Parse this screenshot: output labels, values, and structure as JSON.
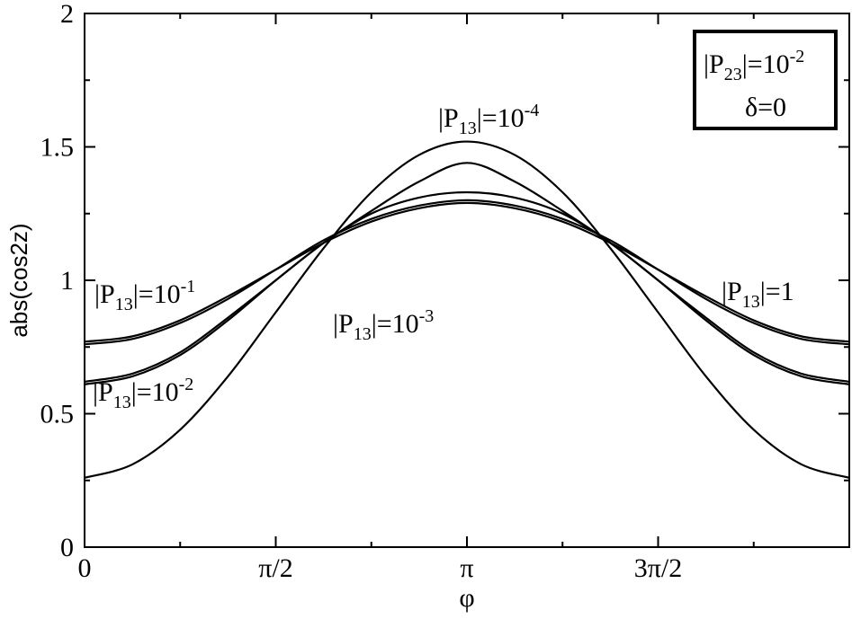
{
  "chart_data": {
    "type": "line",
    "xlabel": "φ",
    "ylabel": "abs(cos2z)",
    "xlim": [
      0,
      6.2832
    ],
    "ylim": [
      0,
      2
    ],
    "x_ticks": [
      {
        "value": 0,
        "label": "0"
      },
      {
        "value": 1.5708,
        "label": "π/2"
      },
      {
        "value": 3.1416,
        "label": "π"
      },
      {
        "value": 4.7124,
        "label": "3π/2"
      }
    ],
    "y_ticks": [
      {
        "value": 0,
        "label": "0"
      },
      {
        "value": 0.5,
        "label": "0.5"
      },
      {
        "value": 1,
        "label": "1"
      },
      {
        "value": 1.5,
        "label": "1.5"
      },
      {
        "value": 2,
        "label": "2"
      }
    ],
    "grid": false,
    "series": [
      {
        "x": [
          0,
          0.3927,
          0.7854,
          1.1781,
          1.5708,
          1.9635,
          2.3562,
          2.7489,
          3.1416,
          3.5343,
          3.927,
          4.3197,
          4.7124,
          5.1051,
          5.4978,
          5.8905,
          6.2832
        ],
        "values": [
          0.77,
          0.79,
          0.85,
          0.94,
          1.04,
          1.14,
          1.22,
          1.27,
          1.29,
          1.27,
          1.22,
          1.14,
          1.04,
          0.94,
          0.85,
          0.79,
          0.77
        ]
      },
      {
        "x": [
          0,
          0.3927,
          0.7854,
          1.1781,
          1.5708,
          1.9635,
          2.3562,
          2.7489,
          3.1416,
          3.5343,
          3.927,
          4.3197,
          4.7124,
          5.1051,
          5.4978,
          5.8905,
          6.2832
        ],
        "values": [
          0.76,
          0.78,
          0.84,
          0.93,
          1.04,
          1.15,
          1.23,
          1.28,
          1.3,
          1.28,
          1.23,
          1.15,
          1.04,
          0.93,
          0.84,
          0.78,
          0.76
        ]
      },
      {
        "x": [
          0,
          0.3927,
          0.7854,
          1.1781,
          1.5708,
          1.9635,
          2.3562,
          2.7489,
          3.1416,
          3.5343,
          3.927,
          4.3197,
          4.7124,
          5.1051,
          5.4978,
          5.8905,
          6.2832
        ],
        "values": [
          0.62,
          0.65,
          0.73,
          0.86,
          1.0,
          1.14,
          1.25,
          1.31,
          1.33,
          1.31,
          1.25,
          1.14,
          1.0,
          0.86,
          0.73,
          0.65,
          0.62
        ]
      },
      {
        "x": [
          0,
          0.3927,
          0.7854,
          1.1781,
          1.5708,
          1.9635,
          2.3562,
          2.7489,
          3.1416,
          3.5343,
          3.927,
          4.3197,
          4.7124,
          5.1051,
          5.4978,
          5.8905,
          6.2832
        ],
        "values": [
          0.26,
          0.31,
          0.44,
          0.64,
          0.88,
          1.12,
          1.33,
          1.47,
          1.52,
          1.47,
          1.33,
          1.12,
          0.88,
          0.64,
          0.44,
          0.31,
          0.26
        ]
      },
      {
        "x": [
          0,
          0.3927,
          0.7854,
          1.1781,
          1.5708,
          1.9635,
          2.3562,
          2.7489,
          3.1416,
          3.5343,
          3.927,
          4.3197,
          4.7124,
          5.1051,
          5.4978,
          5.8905,
          6.2832
        ],
        "values": [
          0.61,
          0.64,
          0.72,
          0.85,
          1.0,
          1.14,
          1.26,
          1.37,
          1.44,
          1.37,
          1.26,
          1.14,
          1.0,
          0.85,
          0.72,
          0.64,
          0.61
        ]
      }
    ],
    "annotations": [
      {
        "base": "|P",
        "sub": "13",
        "tail": "|=10",
        "sup": "-4"
      },
      {
        "base": "|P",
        "sub": "13",
        "tail": "|=10",
        "sup": "-1"
      },
      {
        "base": "|P",
        "sub": "13",
        "tail": "|=1",
        "sup": ""
      },
      {
        "base": "|P",
        "sub": "13",
        "tail": "|=10",
        "sup": "-3"
      },
      {
        "base": "|P",
        "sub": "13",
        "tail": "|=10",
        "sup": "-2"
      }
    ],
    "legend_box": {
      "line1": {
        "base": "|P",
        "sub": "23",
        "tail": "|=10",
        "sup": "-2"
      },
      "line2": "δ=0",
      "position": "top-right"
    }
  }
}
